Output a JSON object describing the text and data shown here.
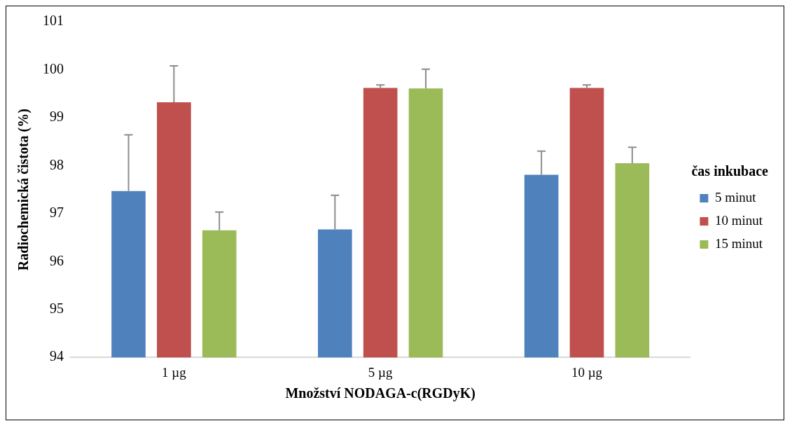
{
  "chart_data": {
    "type": "bar",
    "xlabel": "Množství NODAGA-c(RGDyK)",
    "ylabel": "Radiochemická čistota (%)",
    "legend_title": "čas inkubace",
    "categories": [
      "1 µg",
      "5 µg",
      "10 µg"
    ],
    "series": [
      {
        "name": "5 minut",
        "color": "#4f81bd",
        "values": [
          97.47,
          96.67,
          97.81
        ],
        "errors": [
          [
            97.47,
            98.64
          ],
          [
            96.67,
            97.38
          ],
          [
            97.81,
            98.3
          ]
        ]
      },
      {
        "name": "10 minut",
        "color": "#c0504d",
        "values": [
          99.32,
          99.62,
          99.62
        ],
        "errors": [
          [
            99.32,
            100.08
          ],
          [
            99.62,
            99.68
          ],
          [
            99.62,
            99.68
          ]
        ]
      },
      {
        "name": "15 minut",
        "color": "#9bbb59",
        "values": [
          96.65,
          99.61,
          98.05
        ],
        "errors": [
          [
            96.65,
            97.03
          ],
          [
            99.61,
            100.01
          ],
          [
            98.05,
            98.38
          ]
        ]
      }
    ],
    "ylim": [
      94,
      101
    ],
    "yticks": [
      94,
      95,
      96,
      97,
      98,
      99,
      100,
      101
    ],
    "grid": false,
    "legend": "right"
  }
}
